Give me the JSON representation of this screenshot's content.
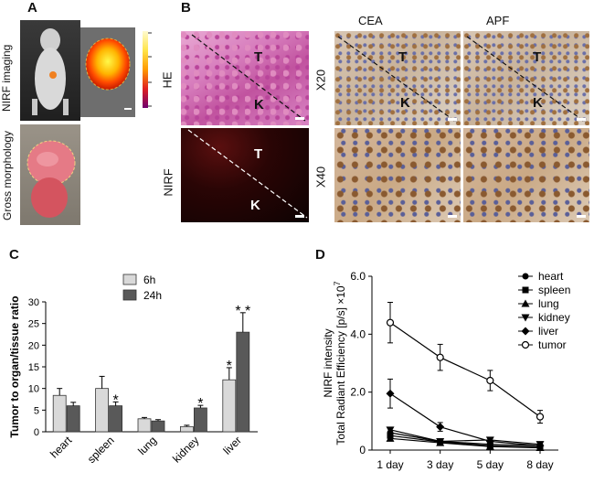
{
  "panels": {
    "a": {
      "label": "A",
      "row1_label": "NIRF imaging",
      "row2_label": "Gross morphology"
    },
    "b": {
      "label": "B",
      "col_cea": "CEA",
      "col_apf": "APF",
      "row_he": "HE",
      "row_nirf": "NIRF",
      "row_x20": "X20",
      "row_x40": "X40",
      "t": "T",
      "k": "K"
    },
    "c": {
      "label": "C"
    },
    "d": {
      "label": "D"
    }
  },
  "chart_data": [
    {
      "type": "bar",
      "panel": "C",
      "categories": [
        "heart",
        "spleen",
        "lung",
        "kidney",
        "liver"
      ],
      "series": [
        {
          "name": "6h",
          "color": "#d9d9d9",
          "values": [
            8.4,
            10.0,
            3.0,
            1.2,
            12.0
          ],
          "errors": [
            1.6,
            2.8,
            0.3,
            0.3,
            2.8
          ]
        },
        {
          "name": "24h",
          "color": "#595959",
          "values": [
            6.0,
            6.0,
            2.5,
            5.5,
            23.0
          ],
          "errors": [
            0.8,
            0.9,
            0.3,
            0.6,
            4.5
          ]
        }
      ],
      "annotations": [
        {
          "category": "spleen",
          "series": "24h",
          "text": "*"
        },
        {
          "category": "kidney",
          "series": "24h",
          "text": "*"
        },
        {
          "category": "liver",
          "series": "6h",
          "text": "*"
        },
        {
          "category": "liver",
          "series": "24h",
          "text": "* *"
        }
      ],
      "ylabel": "Tumor to organ/tissue ratio",
      "ylim": [
        0,
        30
      ],
      "yticks": [
        0,
        5,
        10,
        15,
        20,
        25,
        30
      ]
    },
    {
      "type": "line",
      "panel": "D",
      "x": [
        "1 day",
        "3 day",
        "5 day",
        "8 day"
      ],
      "series": [
        {
          "name": "heart",
          "marker": "circle",
          "values": [
            0.6,
            0.3,
            0.2,
            0.15
          ]
        },
        {
          "name": "spleen",
          "marker": "square",
          "values": [
            0.5,
            0.28,
            0.15,
            0.1
          ]
        },
        {
          "name": "lung",
          "marker": "triangle-up",
          "values": [
            0.4,
            0.25,
            0.12,
            0.08
          ]
        },
        {
          "name": "kidney",
          "marker": "triangle-down",
          "values": [
            0.7,
            0.3,
            0.35,
            0.2
          ]
        },
        {
          "name": "liver",
          "marker": "diamond",
          "values": [
            1.95,
            0.8,
            0.3,
            0.15
          ],
          "errors": [
            0.5,
            0.15,
            0.1,
            0.05
          ]
        },
        {
          "name": "tumor",
          "marker": "open-circle",
          "values": [
            4.4,
            3.2,
            2.4,
            1.15
          ],
          "errors": [
            0.7,
            0.45,
            0.35,
            0.22
          ]
        }
      ],
      "ylabel_line1": "NIRF intensity",
      "ylabel_line2": "Total Radiant Efficiency [p/s] ×10",
      "ylabel_exp": "7",
      "ylim": [
        0,
        6
      ],
      "yticks": [
        "0",
        "2.0",
        "4.0",
        "6.0"
      ],
      "legend_position": "top-right"
    }
  ]
}
